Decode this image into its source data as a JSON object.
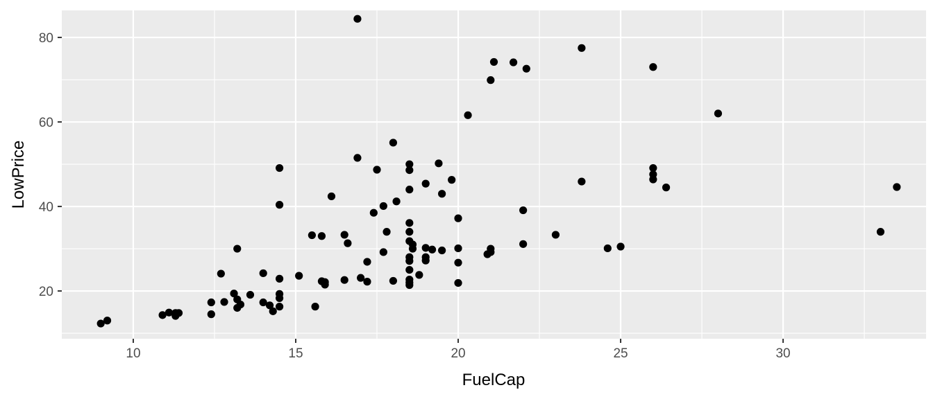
{
  "chart_data": {
    "type": "scatter",
    "xlabel": "FuelCap",
    "ylabel": "LowPrice",
    "xlim": [
      7.8,
      34.4
    ],
    "ylim": [
      8.7,
      86.4
    ],
    "x_ticks": [
      10,
      15,
      20,
      25,
      30
    ],
    "y_ticks": [
      20,
      40,
      60,
      80
    ],
    "x_tick_labels": [
      "10",
      "15",
      "20",
      "25",
      "30"
    ],
    "y_tick_labels": [
      "20",
      "40",
      "60",
      "80"
    ],
    "grid": true,
    "panel_color": "#ebebeb",
    "grid_color": "#ffffff",
    "point_color": "#000000",
    "points": [
      [
        9.0,
        12.3
      ],
      [
        9.2,
        13.0
      ],
      [
        10.9,
        14.3
      ],
      [
        11.1,
        14.9
      ],
      [
        11.3,
        14.1
      ],
      [
        11.3,
        14.8
      ],
      [
        11.4,
        14.8
      ],
      [
        12.4,
        17.3
      ],
      [
        12.4,
        14.5
      ],
      [
        12.7,
        24.1
      ],
      [
        12.8,
        17.4
      ],
      [
        13.1,
        19.4
      ],
      [
        13.2,
        18.0
      ],
      [
        13.2,
        16.0
      ],
      [
        13.2,
        30.0
      ],
      [
        13.3,
        16.8
      ],
      [
        13.6,
        19.1
      ],
      [
        14.0,
        24.2
      ],
      [
        14.0,
        17.3
      ],
      [
        14.2,
        16.6
      ],
      [
        14.3,
        15.2
      ],
      [
        14.5,
        49.1
      ],
      [
        14.5,
        40.4
      ],
      [
        14.5,
        22.9
      ],
      [
        14.5,
        19.3
      ],
      [
        14.5,
        18.3
      ],
      [
        14.5,
        16.3
      ],
      [
        15.1,
        23.6
      ],
      [
        15.5,
        33.2
      ],
      [
        15.6,
        16.3
      ],
      [
        15.8,
        33.0
      ],
      [
        15.8,
        22.3
      ],
      [
        15.9,
        21.5
      ],
      [
        15.9,
        22.1
      ],
      [
        16.1,
        42.4
      ],
      [
        16.5,
        33.3
      ],
      [
        16.5,
        22.6
      ],
      [
        16.6,
        31.3
      ],
      [
        16.9,
        84.4
      ],
      [
        16.9,
        51.5
      ],
      [
        17.0,
        23.1
      ],
      [
        17.2,
        26.9
      ],
      [
        17.2,
        22.2
      ],
      [
        17.4,
        38.5
      ],
      [
        17.5,
        48.7
      ],
      [
        17.7,
        40.1
      ],
      [
        17.7,
        29.2
      ],
      [
        17.8,
        34.0
      ],
      [
        18.0,
        55.1
      ],
      [
        18.0,
        22.4
      ],
      [
        18.1,
        41.2
      ],
      [
        18.5,
        50.0
      ],
      [
        18.5,
        48.6
      ],
      [
        18.5,
        44.0
      ],
      [
        18.5,
        36.1
      ],
      [
        18.5,
        34.0
      ],
      [
        18.5,
        31.8
      ],
      [
        18.5,
        28.0
      ],
      [
        18.5,
        27.1
      ],
      [
        18.5,
        25.0
      ],
      [
        18.5,
        22.7
      ],
      [
        18.5,
        22.0
      ],
      [
        18.5,
        21.4
      ],
      [
        18.6,
        31.0
      ],
      [
        18.6,
        30.0
      ],
      [
        18.8,
        23.8
      ],
      [
        19.0,
        45.4
      ],
      [
        19.0,
        30.2
      ],
      [
        19.0,
        28.0
      ],
      [
        19.0,
        27.2
      ],
      [
        19.2,
        29.8
      ],
      [
        19.4,
        50.2
      ],
      [
        19.5,
        43.0
      ],
      [
        19.5,
        29.6
      ],
      [
        19.8,
        46.3
      ],
      [
        20.0,
        37.2
      ],
      [
        20.0,
        30.1
      ],
      [
        20.0,
        26.7
      ],
      [
        20.0,
        21.9
      ],
      [
        20.3,
        61.6
      ],
      [
        20.9,
        28.7
      ],
      [
        21.0,
        69.9
      ],
      [
        21.0,
        29.2
      ],
      [
        21.0,
        30.0
      ],
      [
        21.1,
        74.2
      ],
      [
        21.7,
        74.1
      ],
      [
        22.0,
        39.1
      ],
      [
        22.0,
        31.1
      ],
      [
        22.1,
        72.6
      ],
      [
        23.0,
        33.3
      ],
      [
        23.8,
        77.5
      ],
      [
        23.8,
        45.9
      ],
      [
        24.6,
        30.1
      ],
      [
        25.0,
        30.5
      ],
      [
        26.0,
        73.0
      ],
      [
        26.0,
        49.1
      ],
      [
        26.0,
        47.6
      ],
      [
        26.0,
        46.4
      ],
      [
        26.4,
        44.5
      ],
      [
        28.0,
        62.0
      ],
      [
        33.0,
        34.0
      ],
      [
        33.5,
        44.6
      ]
    ]
  }
}
